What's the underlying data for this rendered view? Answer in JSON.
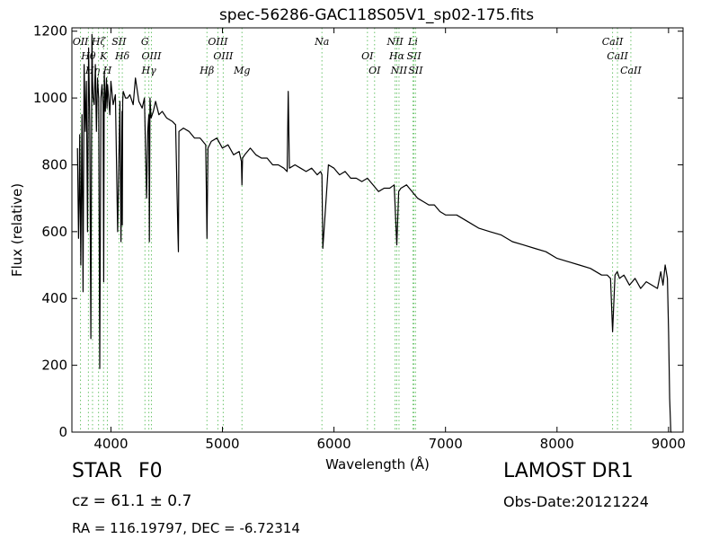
{
  "chart_data": {
    "type": "line",
    "title": "spec-56286-GAC118S05V1_sp02-175.fits",
    "xlabel": "Wavelength (Å)",
    "ylabel": "Flux (relative)",
    "xlim": [
      3650,
      9130
    ],
    "ylim": [
      0,
      1210
    ],
    "xticks": [
      4000,
      5000,
      6000,
      7000,
      8000,
      9000
    ],
    "yticks": [
      0,
      200,
      400,
      600,
      800,
      1000,
      1200
    ],
    "grid": false,
    "series": [
      {
        "color": "#000000",
        "x": [
          3700,
          3710,
          3715,
          3720,
          3730,
          3740,
          3750,
          3760,
          3770,
          3780,
          3790,
          3800,
          3810,
          3820,
          3830,
          3835,
          3840,
          3850,
          3860,
          3870,
          3880,
          3890,
          3900,
          3910,
          3920,
          3930,
          3935,
          3940,
          3950,
          3960,
          3965,
          3970,
          3980,
          3990,
          4000,
          4020,
          4040,
          4060,
          4080,
          4090,
          4100,
          4102,
          4105,
          4110,
          4130,
          4150,
          4170,
          4200,
          4220,
          4250,
          4280,
          4300,
          4320,
          4330,
          4340,
          4345,
          4350,
          4360,
          4380,
          4400,
          4430,
          4460,
          4500,
          4550,
          4580,
          4600,
          4605,
          4610,
          4650,
          4700,
          4750,
          4800,
          4850,
          4861,
          4870,
          4900,
          4950,
          5000,
          5050,
          5100,
          5150,
          5170,
          5175,
          5180,
          5200,
          5250,
          5300,
          5350,
          5400,
          5450,
          5500,
          5550,
          5580,
          5590,
          5600,
          5650,
          5700,
          5750,
          5800,
          5850,
          5880,
          5892,
          5900,
          5950,
          6000,
          6050,
          6100,
          6150,
          6200,
          6250,
          6300,
          6350,
          6400,
          6450,
          6500,
          6540,
          6563,
          6580,
          6600,
          6650,
          6700,
          6750,
          6800,
          6850,
          6900,
          6950,
          7000,
          7100,
          7200,
          7300,
          7400,
          7500,
          7600,
          7700,
          7800,
          7900,
          8000,
          8100,
          8200,
          8300,
          8400,
          8450,
          8480,
          8498,
          8520,
          8540,
          8560,
          8600,
          8650,
          8700,
          8750,
          8800,
          8850,
          8900,
          8930,
          8950,
          8970,
          8990,
          9000,
          9010,
          9020,
          9030
        ],
        "y": [
          850,
          580,
          700,
          890,
          500,
          950,
          420,
          1100,
          900,
          1050,
          600,
          1150,
          920,
          280,
          1190,
          1050,
          1000,
          980,
          1100,
          900,
          1060,
          1000,
          190,
          1000,
          1040,
          980,
          450,
          1080,
          960,
          1060,
          970,
          1040,
          1000,
          950,
          1050,
          980,
          1010,
          600,
          990,
          570,
          960,
          620,
          990,
          1020,
          1000,
          1000,
          1010,
          980,
          1060,
          990,
          970,
          1000,
          700,
          900,
          950,
          570,
          1000,
          940,
          960,
          990,
          950,
          960,
          940,
          930,
          920,
          600,
          540,
          900,
          910,
          900,
          880,
          880,
          860,
          580,
          850,
          870,
          880,
          850,
          860,
          830,
          840,
          810,
          740,
          820,
          830,
          850,
          830,
          820,
          820,
          800,
          800,
          790,
          780,
          1020,
          790,
          800,
          790,
          780,
          790,
          770,
          780,
          770,
          550,
          800,
          790,
          770,
          780,
          760,
          760,
          750,
          760,
          740,
          720,
          730,
          730,
          740,
          560,
          720,
          730,
          740,
          720,
          700,
          690,
          680,
          680,
          660,
          650,
          650,
          630,
          610,
          600,
          590,
          570,
          560,
          550,
          540,
          520,
          510,
          500,
          490,
          470,
          470,
          460,
          300,
          470,
          480,
          460,
          470,
          440,
          460,
          430,
          450,
          440,
          430,
          480,
          440,
          500,
          460,
          300,
          100,
          0,
          0
        ]
      }
    ],
    "annotations": [
      {
        "label": "OII",
        "x": 3727
      },
      {
        "label": "Hθ",
        "x": 3798
      },
      {
        "label": "Hη",
        "x": 3835
      },
      {
        "label": "Hζ",
        "x": 3889
      },
      {
        "label": "K",
        "x": 3934
      },
      {
        "label": "H",
        "x": 3968
      },
      {
        "label": "SII",
        "x": 4072
      },
      {
        "label": "Hδ",
        "x": 4102
      },
      {
        "label": "Hγ",
        "x": 4340
      },
      {
        "label": "G",
        "x": 4305
      },
      {
        "label": "OIII",
        "x": 4363
      },
      {
        "label": "Hβ",
        "x": 4861
      },
      {
        "label": "OIII",
        "x": 4959
      },
      {
        "label": "OIII",
        "x": 5007
      },
      {
        "label": "Mg",
        "x": 5175
      },
      {
        "label": "Na",
        "x": 5892
      },
      {
        "label": "OI",
        "x": 6300
      },
      {
        "label": "OI",
        "x": 6364
      },
      {
        "label": "NII",
        "x": 6548
      },
      {
        "label": "Hα",
        "x": 6563
      },
      {
        "label": "NII",
        "x": 6583
      },
      {
        "label": "Li",
        "x": 6708
      },
      {
        "label": "SII",
        "x": 6717
      },
      {
        "label": "SII",
        "x": 6731
      },
      {
        "label": "CaII",
        "x": 8498
      },
      {
        "label": "CaII",
        "x": 8542
      },
      {
        "label": "CaII",
        "x": 8662
      }
    ]
  },
  "info": {
    "class_label": "STAR",
    "subclass": "F0",
    "survey": "LAMOST DR1",
    "cz": "cz = 61.1 ± 0.7",
    "obs_date": "Obs-Date:20121224",
    "coords": "RA = 116.19797, DEC = -6.72314"
  },
  "colors": {
    "spectrum": "#000000",
    "line_markers": "#6cc46c",
    "background": "#ffffff"
  }
}
